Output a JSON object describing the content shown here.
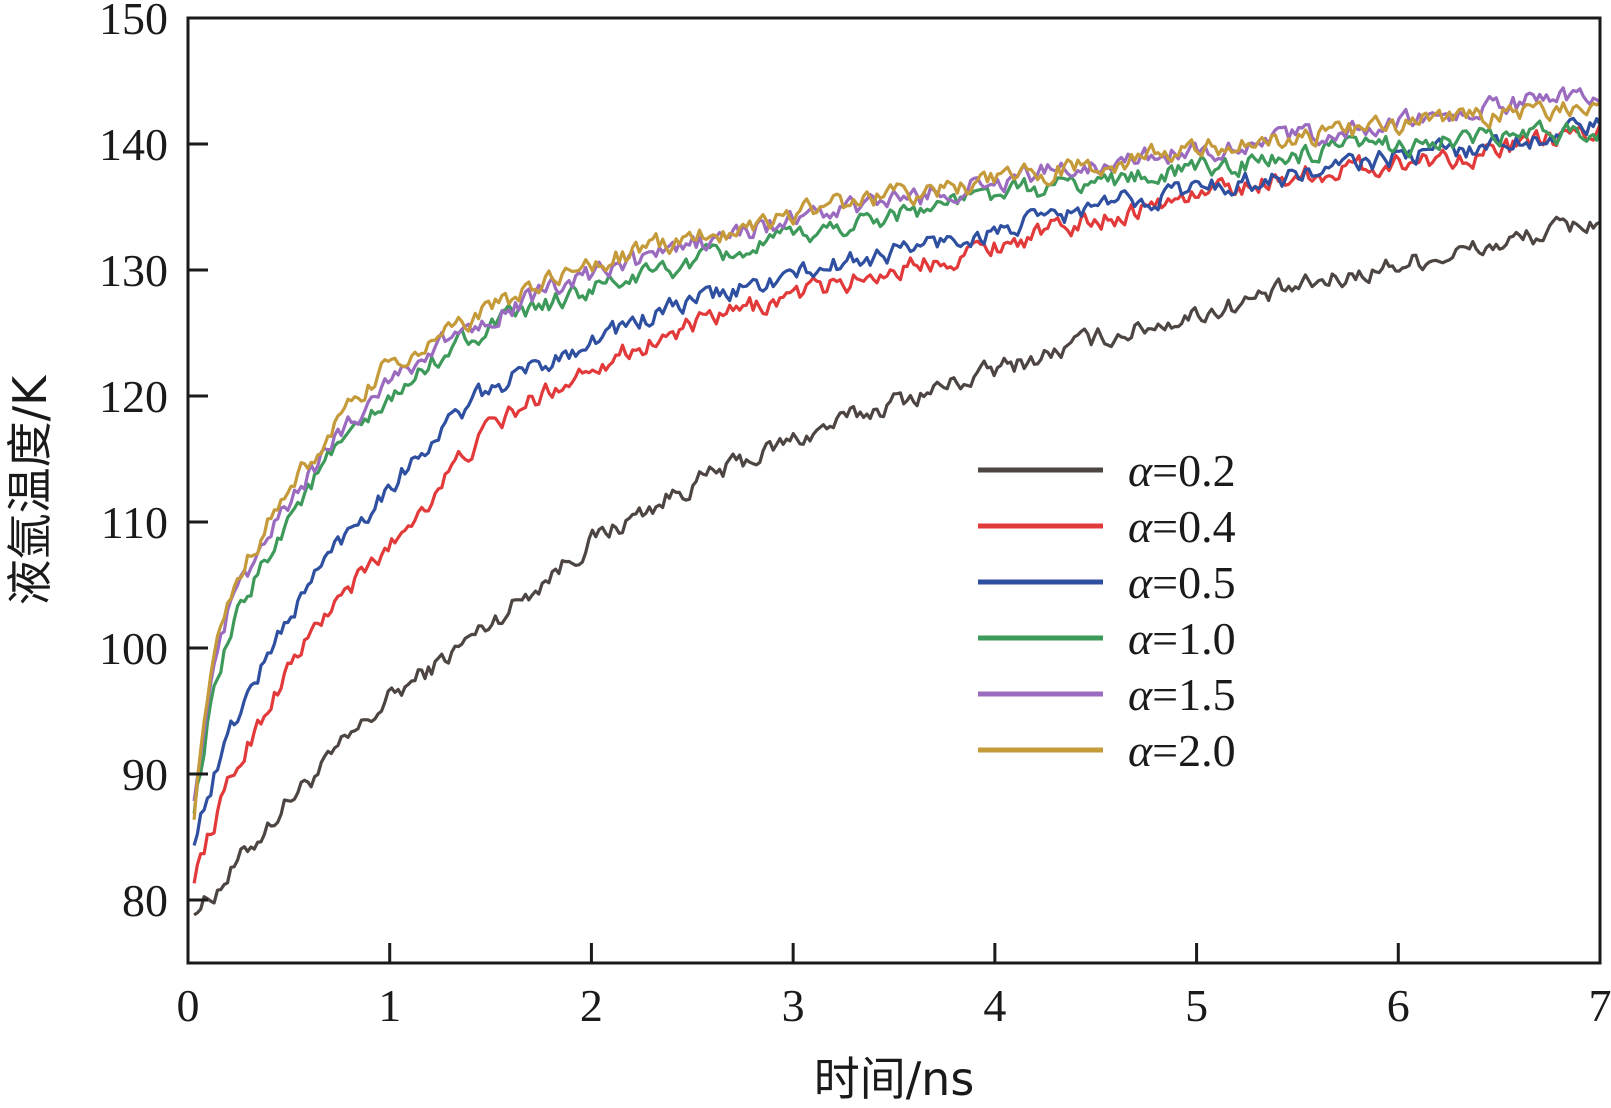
{
  "chart_data": {
    "type": "line",
    "title": "",
    "xlabel": "时间/ns",
    "ylabel": "液氩温度/K",
    "xlim": [
      0,
      7
    ],
    "ylim": [
      75,
      150
    ],
    "xticks": [
      "0",
      "1",
      "2",
      "3",
      "4",
      "5",
      "6",
      "7"
    ],
    "yticks": [
      "80",
      "90",
      "100",
      "110",
      "120",
      "130",
      "140",
      "150"
    ],
    "grid": false,
    "legend_position": "center-right",
    "x": [
      0.03,
      0.1,
      0.2,
      0.3,
      0.5,
      0.7,
      1.0,
      1.3,
      1.5,
      2.0,
      2.5,
      3.0,
      3.5,
      4.0,
      4.5,
      5.0,
      5.5,
      6.0,
      6.5,
      7.0
    ],
    "series": [
      {
        "name": "α=0.2",
        "symbol": "α",
        "value_text": "=0.2",
        "color": "#4d4542",
        "values": [
          79.5,
          80,
          82,
          84,
          88,
          91,
          96,
          99.5,
          102,
          108.5,
          113,
          116.5,
          119.5,
          122,
          124.5,
          126.5,
          128.5,
          130.5,
          132,
          134
        ]
      },
      {
        "name": "α=0.4",
        "symbol": "α",
        "value_text": "=0.4",
        "color": "#e23a3a",
        "values": [
          82,
          85,
          89,
          92.5,
          98.5,
          103,
          108,
          114,
          117.5,
          122.5,
          125.5,
          128,
          130,
          132,
          134,
          136,
          137.5,
          138.5,
          139.5,
          141
        ]
      },
      {
        "name": "α=0.5",
        "symbol": "α",
        "value_text": "=0.5",
        "color": "#2f4fa0",
        "values": [
          85,
          88.5,
          93,
          96.5,
          102.5,
          107.5,
          113,
          118,
          120.5,
          124.5,
          127.5,
          129.5,
          131.5,
          133,
          135,
          136.5,
          137.5,
          139,
          140,
          141.5
        ]
      },
      {
        "name": "α=1.0",
        "symbol": "α",
        "value_text": "=1.0",
        "color": "#3d9a5a",
        "values": [
          87.5,
          94,
          100.5,
          104.5,
          110.5,
          115,
          119.5,
          124,
          125.5,
          128.5,
          130.5,
          132.5,
          134.5,
          136,
          137,
          138,
          139,
          140,
          140.5,
          141
        ]
      },
      {
        "name": "α=1.5",
        "symbol": "α",
        "value_text": "=1.5",
        "color": "#9b6bbf",
        "values": [
          88.5,
          96,
          102.5,
          106,
          111.5,
          116,
          121.5,
          124.5,
          126.5,
          129.5,
          132,
          134,
          135.5,
          137,
          138.5,
          139.5,
          140.5,
          141.5,
          143,
          144
        ]
      },
      {
        "name": "α=2.0",
        "symbol": "α",
        "value_text": "=2.0",
        "color": "#c59a3a",
        "values": [
          87,
          97,
          103.5,
          107.5,
          112.5,
          117,
          122.5,
          125,
          127,
          130.5,
          132.5,
          134.5,
          136,
          137,
          138.5,
          139.5,
          140.5,
          141.5,
          142.5,
          143
        ]
      }
    ]
  }
}
